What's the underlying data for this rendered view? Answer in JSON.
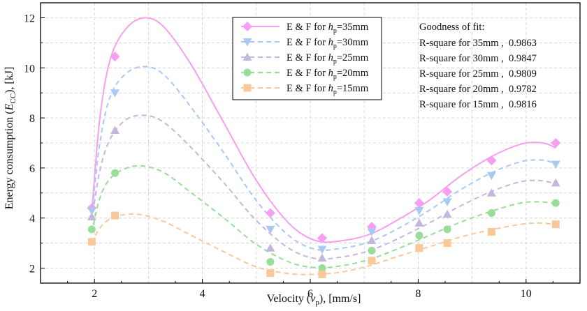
{
  "chart_data": {
    "type": "scatter",
    "xlabel_text": "Velocity (",
    "xlabel_var": "v",
    "xlabel_sub": "p",
    "xlabel_tail": "), [mm/s]",
    "ylabel_text": "Energy consumption (",
    "ylabel_var": "E",
    "ylabel_sub": "CC",
    "ylabel_tail": "), [kJ]",
    "xlim": [
      1.0,
      11.0
    ],
    "ylim": [
      1.4,
      12.6
    ],
    "x_ticks": [
      2,
      4,
      6,
      8,
      10
    ],
    "y_ticks": [
      2,
      4,
      6,
      8,
      10,
      12
    ],
    "x": [
      1.95,
      2.38,
      5.26,
      6.22,
      7.14,
      8.02,
      8.54,
      9.36,
      10.55
    ],
    "series": [
      {
        "name": "35mm",
        "legend_prefix": "E & F for ",
        "legend_var": "h",
        "legend_sub": "p",
        "legend_value": "=35mm",
        "marker": "diamond",
        "color": "#f79ef0",
        "line_style": "solid",
        "values": [
          4.4,
          10.45,
          4.2,
          3.2,
          3.65,
          4.6,
          5.05,
          6.3,
          7.0
        ],
        "fit": [
          [
            1.95,
            4.2
          ],
          [
            2.1,
            8.0
          ],
          [
            2.3,
            10.4
          ],
          [
            2.6,
            11.6
          ],
          [
            2.95,
            12.0
          ],
          [
            3.3,
            11.6
          ],
          [
            3.8,
            10.1
          ],
          [
            4.4,
            7.8
          ],
          [
            5.0,
            5.5
          ],
          [
            5.6,
            3.8
          ],
          [
            6.1,
            3.1
          ],
          [
            6.6,
            3.1
          ],
          [
            7.1,
            3.35
          ],
          [
            7.6,
            3.9
          ],
          [
            8.2,
            4.7
          ],
          [
            8.8,
            5.7
          ],
          [
            9.4,
            6.5
          ],
          [
            9.9,
            6.95
          ],
          [
            10.2,
            7.02
          ],
          [
            10.4,
            6.95
          ],
          [
            10.55,
            6.8
          ]
        ]
      },
      {
        "name": "30mm",
        "legend_prefix": "E & F for ",
        "legend_var": "h",
        "legend_sub": "p",
        "legend_value": "=30mm",
        "marker": "triangle-down",
        "color": "#a9c8f4",
        "line_style": "dashed",
        "values": [
          4.3,
          9.0,
          3.55,
          2.75,
          3.45,
          4.3,
          4.65,
          5.7,
          6.15
        ],
        "fit": [
          [
            1.95,
            4.1
          ],
          [
            2.1,
            7.0
          ],
          [
            2.3,
            8.9
          ],
          [
            2.6,
            9.8
          ],
          [
            2.95,
            10.05
          ],
          [
            3.3,
            9.7
          ],
          [
            3.8,
            8.4
          ],
          [
            4.4,
            6.6
          ],
          [
            5.0,
            4.7
          ],
          [
            5.6,
            3.3
          ],
          [
            6.1,
            2.75
          ],
          [
            6.6,
            2.8
          ],
          [
            7.1,
            3.05
          ],
          [
            7.6,
            3.55
          ],
          [
            8.2,
            4.3
          ],
          [
            8.8,
            5.15
          ],
          [
            9.4,
            5.85
          ],
          [
            9.9,
            6.25
          ],
          [
            10.2,
            6.32
          ],
          [
            10.4,
            6.28
          ],
          [
            10.55,
            6.15
          ]
        ]
      },
      {
        "name": "25mm",
        "legend_prefix": "E & F for ",
        "legend_var": "h",
        "legend_sub": "p",
        "legend_value": "=25mm",
        "marker": "triangle-up",
        "color": "#c4b6de",
        "line_style": "dashed",
        "values": [
          4.05,
          7.5,
          2.8,
          2.4,
          3.1,
          3.8,
          4.15,
          5.0,
          5.4
        ],
        "fit": [
          [
            1.95,
            3.9
          ],
          [
            2.1,
            5.9
          ],
          [
            2.3,
            7.2
          ],
          [
            2.6,
            7.95
          ],
          [
            2.95,
            8.1
          ],
          [
            3.3,
            7.8
          ],
          [
            3.8,
            6.8
          ],
          [
            4.4,
            5.4
          ],
          [
            5.0,
            3.9
          ],
          [
            5.6,
            2.8
          ],
          [
            6.1,
            2.38
          ],
          [
            6.6,
            2.45
          ],
          [
            7.1,
            2.7
          ],
          [
            7.6,
            3.15
          ],
          [
            8.2,
            3.8
          ],
          [
            8.8,
            4.5
          ],
          [
            9.4,
            5.1
          ],
          [
            9.9,
            5.45
          ],
          [
            10.2,
            5.5
          ],
          [
            10.4,
            5.45
          ],
          [
            10.55,
            5.35
          ]
        ]
      },
      {
        "name": "20mm",
        "legend_prefix": "E & F for ",
        "legend_var": "h",
        "legend_sub": "p",
        "legend_value": "=20mm",
        "marker": "circle",
        "color": "#98dd98",
        "line_style": "dashed",
        "values": [
          3.55,
          5.8,
          2.25,
          2.0,
          2.7,
          3.3,
          3.55,
          4.2,
          4.6
        ],
        "fit": [
          [
            1.95,
            3.4
          ],
          [
            2.1,
            4.8
          ],
          [
            2.3,
            5.6
          ],
          [
            2.6,
            6.0
          ],
          [
            2.9,
            6.08
          ],
          [
            3.3,
            5.8
          ],
          [
            3.8,
            5.0
          ],
          [
            4.4,
            4.0
          ],
          [
            5.0,
            2.95
          ],
          [
            5.6,
            2.25
          ],
          [
            6.1,
            2.02
          ],
          [
            6.6,
            2.1
          ],
          [
            7.1,
            2.35
          ],
          [
            7.6,
            2.75
          ],
          [
            8.2,
            3.3
          ],
          [
            8.8,
            3.85
          ],
          [
            9.4,
            4.3
          ],
          [
            9.9,
            4.6
          ],
          [
            10.2,
            4.65
          ],
          [
            10.4,
            4.62
          ],
          [
            10.55,
            4.55
          ]
        ]
      },
      {
        "name": "15mm",
        "legend_prefix": "E & F for ",
        "legend_var": "h",
        "legend_sub": "p",
        "legend_value": "=15mm",
        "marker": "square",
        "color": "#f9c89a",
        "line_style": "dashed",
        "values": [
          3.05,
          4.1,
          1.8,
          1.75,
          2.3,
          2.8,
          3.0,
          3.45,
          3.75
        ],
        "fit": [
          [
            1.95,
            3.0
          ],
          [
            2.1,
            3.6
          ],
          [
            2.3,
            3.98
          ],
          [
            2.6,
            4.15
          ],
          [
            2.9,
            4.12
          ],
          [
            3.3,
            3.85
          ],
          [
            3.8,
            3.3
          ],
          [
            4.4,
            2.65
          ],
          [
            5.0,
            2.05
          ],
          [
            5.6,
            1.78
          ],
          [
            6.1,
            1.75
          ],
          [
            6.6,
            1.85
          ],
          [
            7.1,
            2.1
          ],
          [
            7.6,
            2.45
          ],
          [
            8.2,
            2.85
          ],
          [
            8.8,
            3.25
          ],
          [
            9.4,
            3.55
          ],
          [
            9.9,
            3.75
          ],
          [
            10.2,
            3.8
          ],
          [
            10.4,
            3.78
          ],
          [
            10.55,
            3.72
          ]
        ]
      }
    ],
    "annotation": {
      "title": "Goodness of fit:",
      "lines": [
        "R-square for 35mm ,  0.9863",
        "R-square for 30mm ,  0.9847",
        "R-square for 25mm ,  0.9809",
        "R-square for 20mm ,  0.9782",
        "R-square for 15mm ,  0.9816"
      ]
    }
  }
}
